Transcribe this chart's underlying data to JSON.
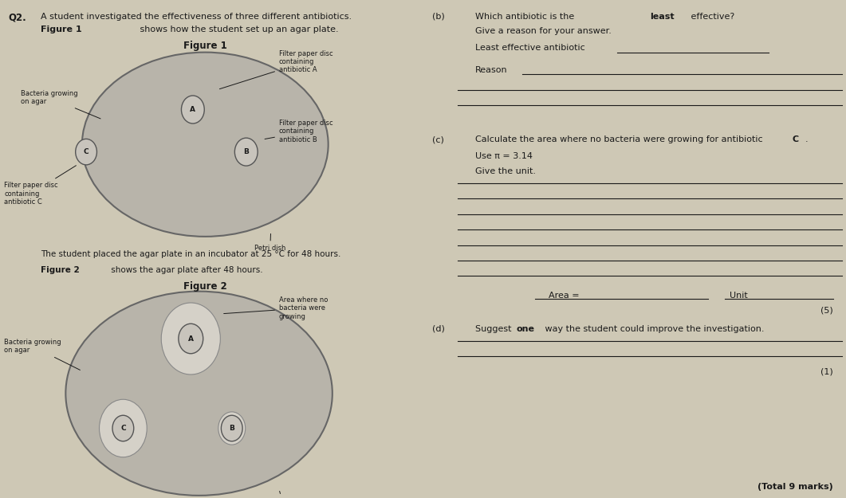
{
  "bg_color": "#cec8b5",
  "text_color": "#1a1a1a",
  "plate_fill": "#b8b4aa",
  "disc_fill": "#c8c4bc",
  "inhibition_fill": "#d5d1c8",
  "disc_center_fill": "#c0bdb5",
  "q2_label": "Q2.",
  "intro_text": "A student investigated the effectiveness of three different antibiotics.",
  "fig1_intro_bold": "Figure 1",
  "fig1_intro_rest": " shows how the student set up an agar plate.",
  "fig1_title": "Figure 1",
  "fig2_title": "Figure 2",
  "fig2_intro_bold": "Figure 2",
  "fig2_intro_rest": " shows the agar plate after 48 hours.",
  "separator_text": "The student placed the agar plate in an incubator at 25 °C for 48 hours.",
  "petri_dish_label": "Petri dish",
  "bacteria_label": "Bacteria growing\non agar",
  "filter_A": "Filter paper disc\ncontaining\nantibiotic A",
  "filter_B": "Filter paper disc\ncontaining\nantibiotic B",
  "filter_C": "Filter paper disc\ncontaining\nantibiotic C",
  "area_label": "Area where no\nbacteria were\ngrowing",
  "b_label": "(b)",
  "b_q1": "Which antibiotic is the ",
  "b_q1_bold": "least",
  "b_q1_end": " effective?",
  "b_reason_intro": "Give a reason for your answer.",
  "b_least": "Least effective antibiotic",
  "b_reason": "Reason",
  "c_label": "(c)",
  "c_q1": "Calculate the area where no bacteria were growing for antibiotic ",
  "c_q1_bold": "C",
  "c_q1_end": ".",
  "c_pi": "Use π = 3.14",
  "c_unit": "Give the unit.",
  "c_area": "Area = ",
  "c_unit_label": "Unit",
  "c_marks": "(5)",
  "d_label": "(d)",
  "d_q1": "Suggest ",
  "d_q1_bold": "one",
  "d_q1_end": " way the student could improve the investigation.",
  "d_marks": "(1)",
  "total": "(Total 9 marks)"
}
